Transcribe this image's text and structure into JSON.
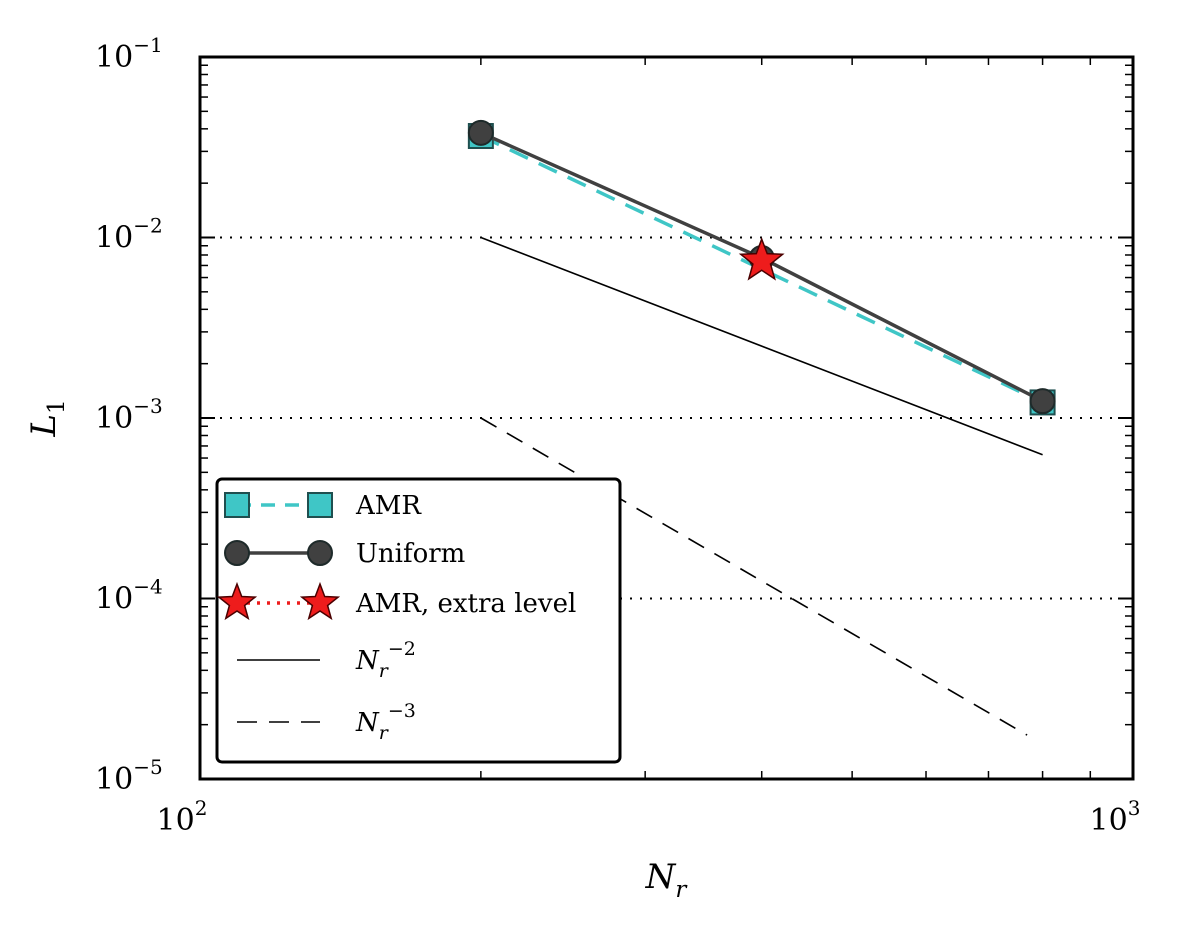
{
  "chart_data": {
    "type": "line",
    "x_scale": "log",
    "y_scale": "log",
    "xlim": [
      100,
      1000
    ],
    "ylim": [
      1e-05,
      0.1
    ],
    "xlabel": {
      "base": "N",
      "sub": "r"
    },
    "ylabel": {
      "base": "L",
      "sub": "1"
    },
    "x_ticks": [
      {
        "value": 100,
        "base": "10",
        "exp": "2"
      },
      {
        "value": 1000,
        "base": "10",
        "exp": "3"
      }
    ],
    "y_ticks": [
      {
        "value": 0.1,
        "base": "10",
        "exp": "−1"
      },
      {
        "value": 0.01,
        "base": "10",
        "exp": "−2"
      },
      {
        "value": 0.001,
        "base": "10",
        "exp": "−3"
      },
      {
        "value": 0.0001,
        "base": "10",
        "exp": "−4"
      },
      {
        "value": 1e-05,
        "base": "10",
        "exp": "−5"
      }
    ],
    "grid": {
      "y_major": "dotted",
      "x": false
    },
    "legend_position": "lower-left",
    "series": [
      {
        "name": "AMR",
        "x": [
          200,
          800
        ],
        "y": [
          0.0365,
          0.00122
        ],
        "color": "#3fc6c6",
        "line": "dashed",
        "marker": "square"
      },
      {
        "name": "Uniform",
        "x": [
          200,
          400,
          800
        ],
        "y": [
          0.038,
          0.0077,
          0.00124
        ],
        "color": "#404040",
        "line": "solid",
        "marker": "circle"
      },
      {
        "name": "AMR, extra level",
        "x": [
          400
        ],
        "y": [
          0.0074
        ],
        "color": "#ee1c1c",
        "line": "dotted",
        "marker": "star"
      },
      {
        "name": "N_r^-2",
        "label": {
          "base": "N",
          "sub": "r",
          "exp": "−2"
        },
        "x": [
          200,
          800
        ],
        "y": [
          0.01,
          0.000625
        ],
        "color": "#000000",
        "line": "solid",
        "marker": "none"
      },
      {
        "name": "N_r^-3",
        "label": {
          "base": "N",
          "sub": "r",
          "exp": "−3"
        },
        "x": [
          200,
          770
        ],
        "y": [
          0.001,
          1.75e-05
        ],
        "color": "#000000",
        "line": "dashed",
        "marker": "none"
      }
    ]
  }
}
